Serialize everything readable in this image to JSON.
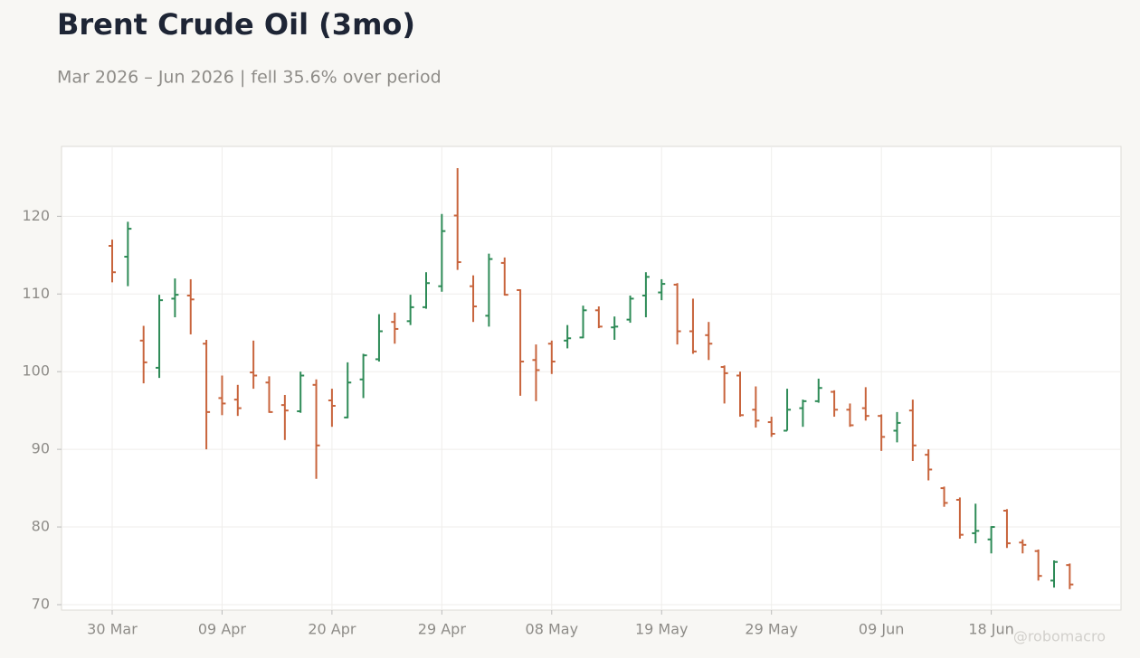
{
  "chart_data": {
    "type": "ohlc",
    "title": "Brent Crude Oil (3mo)",
    "subtitle": "Mar 2026 – Jun 2026 | fell 35.6% over period",
    "watermark": "@robomacro",
    "categories": [
      "30 Mar",
      null,
      null,
      null,
      null,
      null,
      null,
      "09 Apr",
      null,
      null,
      null,
      null,
      null,
      null,
      "20 Apr",
      null,
      null,
      null,
      null,
      null,
      null,
      "29 Apr",
      null,
      null,
      null,
      null,
      null,
      null,
      "08 May",
      null,
      null,
      null,
      null,
      null,
      null,
      "19 May",
      null,
      null,
      null,
      null,
      null,
      null,
      "29 May",
      null,
      null,
      null,
      null,
      null,
      null,
      "09 Jun",
      null,
      null,
      null,
      null,
      null,
      null,
      "18 Jun",
      null,
      null,
      null,
      null,
      null
    ],
    "open": [
      116.2,
      114.8,
      104.0,
      100.5,
      109.4,
      109.8,
      103.6,
      96.6,
      96.4,
      99.9,
      98.6,
      95.7,
      94.9,
      98.3,
      96.3,
      94.1,
      99.0,
      101.6,
      106.4,
      106.5,
      108.3,
      111.0,
      120.1,
      111.0,
      107.2,
      114.0,
      110.5,
      101.5,
      103.6,
      104.0,
      104.4,
      107.9,
      105.7,
      106.7,
      109.8,
      110.2,
      111.2,
      105.2,
      104.7,
      100.6,
      99.5,
      95.1,
      93.5,
      92.4,
      95.3,
      96.2,
      97.4,
      95.1,
      95.3,
      94.3,
      92.4,
      95.0,
      89.3,
      85.0,
      83.5,
      79.2,
      78.4,
      82.1,
      78.0,
      76.9,
      73.1,
      75.1
    ],
    "high": [
      117.0,
      119.3,
      105.9,
      109.9,
      112.0,
      111.9,
      104.1,
      99.5,
      98.3,
      104.0,
      99.4,
      97.0,
      100.0,
      99.0,
      97.8,
      101.2,
      102.3,
      107.4,
      107.6,
      109.9,
      112.8,
      120.3,
      126.2,
      112.4,
      115.2,
      114.7,
      110.6,
      103.5,
      104.0,
      106.0,
      108.5,
      108.4,
      107.1,
      109.8,
      112.8,
      111.9,
      111.4,
      109.4,
      106.4,
      100.8,
      100.0,
      98.1,
      94.2,
      97.8,
      96.4,
      99.1,
      97.6,
      95.9,
      98.0,
      94.5,
      94.8,
      96.4,
      90.0,
      85.2,
      83.8,
      83.0,
      80.1,
      82.3,
      78.4,
      77.1,
      75.7,
      75.3
    ],
    "low": [
      111.5,
      111.0,
      98.5,
      99.2,
      107.0,
      104.8,
      90.0,
      94.4,
      94.3,
      97.8,
      94.7,
      91.2,
      94.7,
      86.2,
      92.9,
      94.0,
      96.6,
      101.3,
      103.6,
      106.0,
      108.1,
      110.3,
      113.1,
      106.4,
      105.8,
      109.8,
      96.9,
      96.2,
      99.7,
      103.0,
      104.3,
      105.6,
      104.1,
      106.3,
      107.0,
      109.2,
      103.5,
      102.3,
      101.5,
      95.9,
      94.2,
      92.8,
      91.6,
      92.4,
      92.9,
      96.0,
      94.2,
      92.9,
      93.7,
      89.8,
      90.9,
      88.5,
      86.0,
      82.6,
      78.5,
      77.9,
      76.6,
      77.3,
      76.6,
      73.1,
      72.2,
      72.0
    ],
    "close": [
      112.8,
      118.4,
      101.2,
      109.2,
      109.9,
      109.3,
      94.8,
      95.9,
      95.3,
      99.5,
      94.8,
      95.0,
      99.5,
      90.5,
      95.6,
      98.6,
      102.1,
      105.2,
      105.5,
      108.3,
      111.4,
      118.1,
      114.1,
      108.4,
      114.5,
      109.9,
      101.3,
      100.2,
      101.3,
      104.3,
      107.9,
      105.8,
      105.8,
      109.4,
      112.2,
      111.3,
      105.2,
      102.6,
      103.6,
      99.8,
      94.4,
      93.7,
      92.0,
      95.1,
      96.2,
      97.9,
      95.1,
      93.1,
      94.3,
      91.6,
      93.4,
      90.5,
      87.4,
      83.1,
      79.0,
      79.5,
      80.0,
      77.9,
      77.7,
      73.7,
      75.5,
      72.6
    ],
    "up_color": "#2e8b57",
    "down_color": "#c8643c",
    "ylim": [
      69.3,
      129
    ],
    "yticks": [
      70,
      80,
      90,
      100,
      110,
      120
    ],
    "grid": true
  }
}
